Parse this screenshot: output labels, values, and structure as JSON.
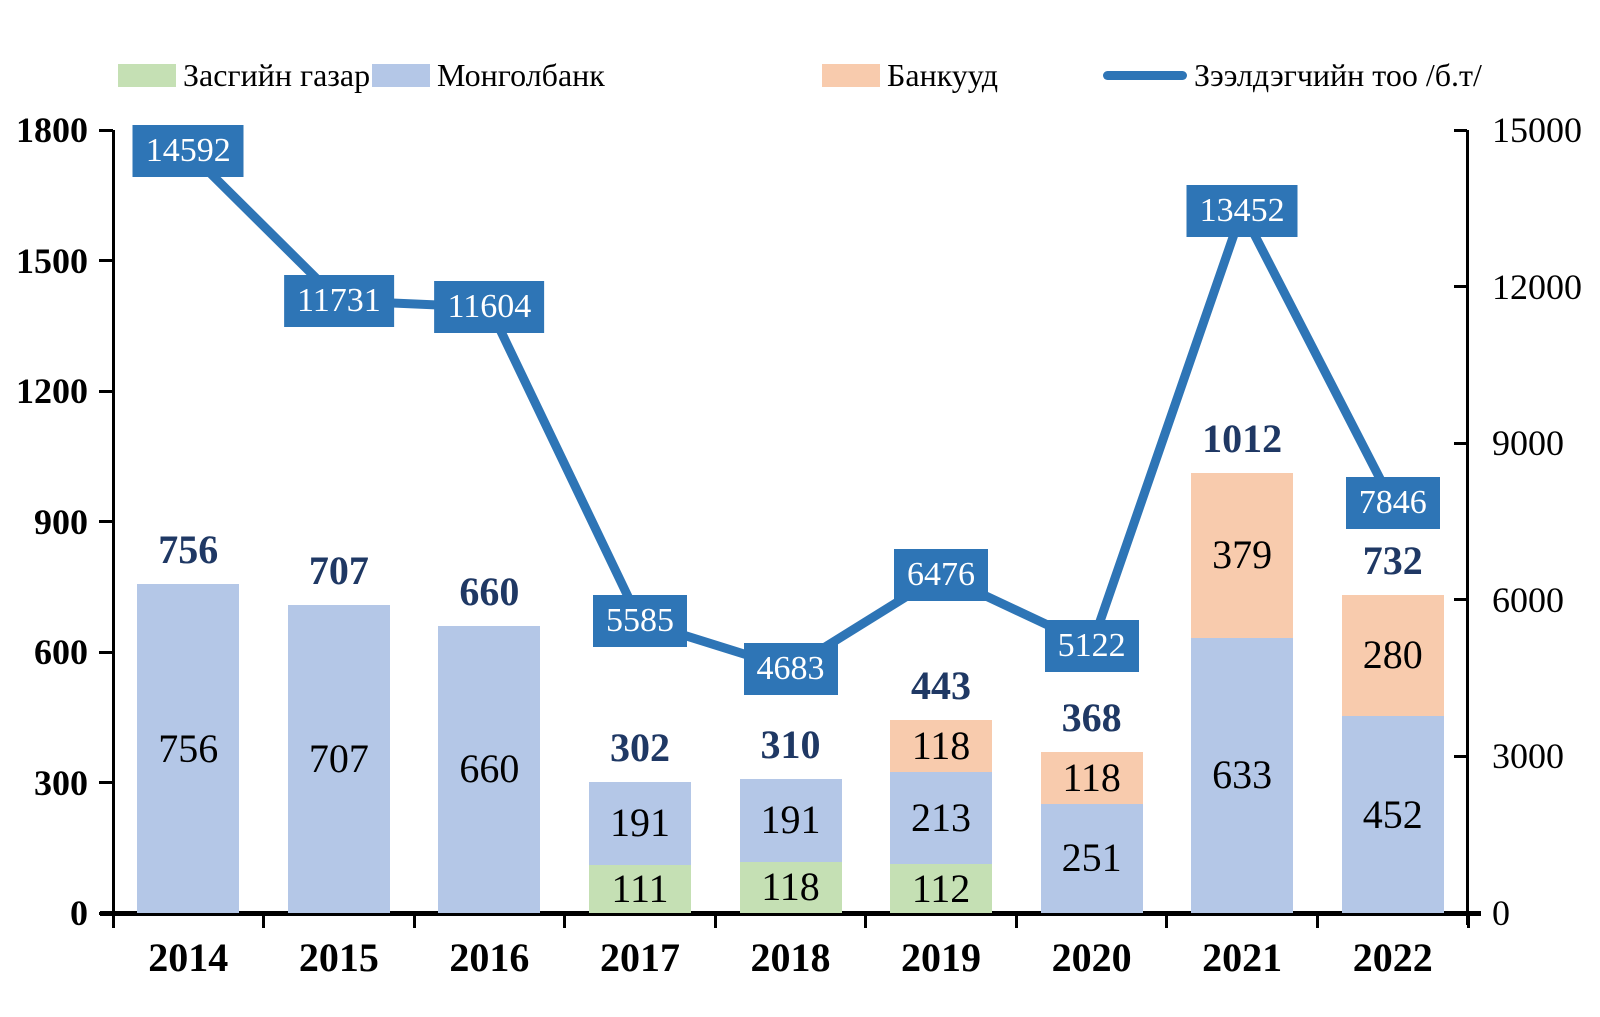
{
  "legend": [
    {
      "label": "Засгийн газар",
      "color": "#c5e0b4",
      "swatch": "box"
    },
    {
      "label": "Монголбанк",
      "color": "#b4c7e7",
      "swatch": "box"
    },
    {
      "label": "Банкууд",
      "color": "#f8cbad",
      "swatch": "box"
    },
    {
      "label": "Зээлдэгчийн тоо /б.т/",
      "color": "#2e75b6",
      "swatch": "line"
    }
  ],
  "chart_data": {
    "type": "combo: stacked bar (left axis) + line (right axis)",
    "categories": [
      "2014",
      "2015",
      "2016",
      "2017",
      "2018",
      "2019",
      "2020",
      "2021",
      "2022"
    ],
    "series": [
      {
        "name": "Засгийн газар",
        "type": "bar",
        "color": "#c5e0b4",
        "values": [
          0,
          0,
          0,
          111,
          118,
          112,
          0,
          0,
          0
        ]
      },
      {
        "name": "Монголбанк",
        "type": "bar",
        "color": "#b4c7e7",
        "values": [
          756,
          707,
          660,
          191,
          191,
          213,
          251,
          633,
          452
        ]
      },
      {
        "name": "Банкууд",
        "type": "bar",
        "color": "#f8cbad",
        "values": [
          0,
          0,
          0,
          0,
          0,
          118,
          118,
          379,
          280
        ]
      },
      {
        "name": "Зээлдэгчийн тоо /б.т/",
        "type": "line",
        "axis": "right",
        "color": "#2e75b6",
        "label_bg": "#2e75b6",
        "label_text_color": "#ffffff",
        "values": [
          14592,
          11731,
          11604,
          5585,
          4683,
          6476,
          5122,
          13452,
          7846
        ]
      }
    ],
    "stack_totals": [
      756,
      707,
      660,
      302,
      310,
      443,
      368,
      1012,
      732
    ],
    "left_axis": {
      "min": 0,
      "max": 1800,
      "step": 300,
      "ticks": [
        "0",
        "300",
        "600",
        "900",
        "1200",
        "1500",
        "1800"
      ]
    },
    "right_axis": {
      "min": 0,
      "max": 15000,
      "step": 3000,
      "ticks": [
        "0",
        "3000",
        "6000",
        "9000",
        "12000",
        "15000"
      ]
    },
    "colors": {
      "total_label": "#1f3864",
      "segment_label": "#000000",
      "axis": "#000000"
    },
    "grid": "off",
    "legend_position": "top"
  }
}
